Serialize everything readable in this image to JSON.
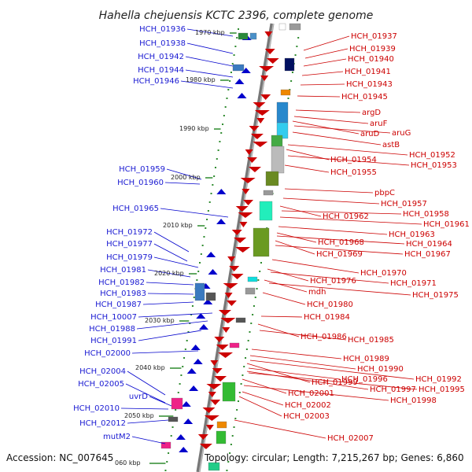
{
  "title": "Hahella chejuensis KCTC 2396, complete genome",
  "footer": {
    "accession": "Accession: NC_007645",
    "summary": "Topology: circular; Length: 7,215,267 bp; Genes: 6,860"
  },
  "colors": {
    "forward": "#cc0000",
    "reverse": "#0000cc",
    "backbone": "#888888",
    "tick": "#2e8b2e"
  },
  "kbp_labels": [
    "1970 kbp",
    "1980 kbp",
    "1990 kbp",
    "2000 kbp",
    "2010 kbp",
    "2020 kbp",
    "2030 kbp",
    "2040 kbp",
    "2050 kbp",
    "060 kbp"
  ],
  "left_labels": [
    "HCH_01936",
    "HCH_01938",
    "HCH_01942",
    "HCH_01944",
    "HCH_01946",
    "HCH_01959",
    "HCH_01960",
    "HCH_01965",
    "HCH_01972",
    "HCH_01977",
    "HCH_01979",
    "HCH_01981",
    "HCH_01982",
    "HCH_01983",
    "HCH_01987",
    "HCH_10007",
    "HCH_01988",
    "HCH_01991",
    "HCH_02000",
    "HCH_02004",
    "HCH_02005",
    "uvrD",
    "HCH_02010",
    "HCH_02012",
    "mutM2"
  ],
  "right_labels": [
    "HCH_01937",
    "HCH_01939",
    "HCH_01940",
    "HCH_01941",
    "HCH_01943",
    "HCH_01945",
    "argD",
    "aruF",
    "aruD",
    "aruG",
    "astB",
    "HCH_01952",
    "HCH_01954",
    "HCH_01953",
    "HCH_01955",
    "pbpC",
    "HCH_01957",
    "HCH_01962",
    "HCH_01958",
    "HCH_01961",
    "HCH_01963",
    "HCH_01968",
    "HCH_01964",
    "HCH_01969",
    "HCH_01967",
    "HCH_01970",
    "HCH_01976",
    "HCH_01971",
    "mdh",
    "HCH_01975",
    "HCH_01980",
    "HCH_01984",
    "HCH_01986",
    "HCH_01985",
    "HCH_01989",
    "HCH_01990",
    "HCH_01992",
    "HCH_01999",
    "HCH_01996",
    "HCH_01997",
    "HCH_01995",
    "HCH_02001",
    "HCH_01998",
    "HCH_02002",
    "HCH_02003",
    "HCH_02007"
  ]
}
